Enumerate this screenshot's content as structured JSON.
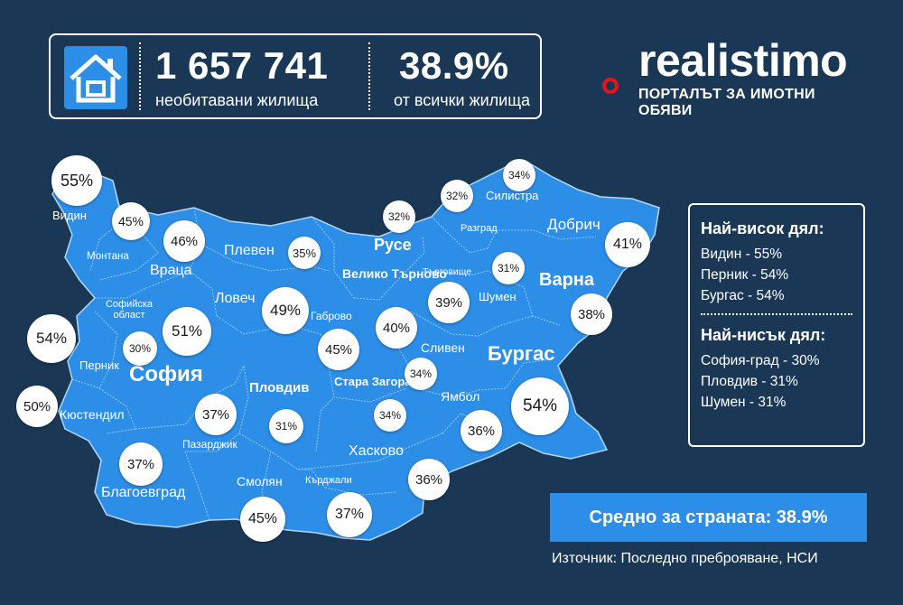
{
  "header": {
    "count": "1 657 741",
    "count_caption": "необитавани жилища",
    "percent": "38.9%",
    "percent_caption": "от всички жилища"
  },
  "logo": {
    "wordmark": "realistimo",
    "tagline": "ПОРТАЛЪТ ЗА ИМОТНИ ОБЯВИ"
  },
  "colors": {
    "background": "#1a3856",
    "map_fill": "#2d8ee8",
    "border": "#9cc8f2",
    "brand_red": "#e3151c"
  },
  "regions": [
    {
      "name": "Видин",
      "percent": "55%"
    },
    {
      "name": "Монтана",
      "percent": "45%"
    },
    {
      "name": "Враца",
      "percent": "46%"
    },
    {
      "name": "Плевен",
      "percent": "35%"
    },
    {
      "name": "Ловеч",
      "percent": "49%"
    },
    {
      "name": "Велико Търново",
      "percent": "40%"
    },
    {
      "name": "Габрово",
      "percent": "45%"
    },
    {
      "name": "Русе",
      "percent": "32%"
    },
    {
      "name": "Разград",
      "percent": "32%"
    },
    {
      "name": "Силистра",
      "percent": "34%"
    },
    {
      "name": "Добрич",
      "percent": "41%"
    },
    {
      "name": "Търговище",
      "percent": "39%"
    },
    {
      "name": "Шумен",
      "percent": "31%"
    },
    {
      "name": "Варна",
      "percent": "38%"
    },
    {
      "name": "Сливен",
      "percent": "34%"
    },
    {
      "name": "Бургас",
      "percent": "54%"
    },
    {
      "name": "Ямбол",
      "percent": "36%"
    },
    {
      "name": "Стара Загора",
      "percent": "34%"
    },
    {
      "name": "Хасково",
      "percent": "36%"
    },
    {
      "name": "Кърджали",
      "percent": "37%"
    },
    {
      "name": "Смолян",
      "percent": "45%"
    },
    {
      "name": "Пловдив",
      "percent": "31%"
    },
    {
      "name": "Пазарджик",
      "percent": "37%"
    },
    {
      "name": "Благоевград",
      "percent": "37%"
    },
    {
      "name": "Кюстендил",
      "percent": "50%"
    },
    {
      "name": "Перник",
      "percent": "54%"
    },
    {
      "name": "София",
      "percent": "30%"
    },
    {
      "name": "Софийска област",
      "percent": "51%"
    }
  ],
  "panel": {
    "highest_title": "Най-висок дял:",
    "highest": [
      "Видин - 55%",
      "Перник - 54%",
      "Бургас - 54%"
    ],
    "lowest_title": "Най-нисък дял:",
    "lowest": [
      "София-град - 30%",
      "Пловдив - 31%",
      "Шумен - 31%"
    ]
  },
  "average": "Средно за страната: 38.9%",
  "source": "Източник: Последно преброяване, НСИ"
}
